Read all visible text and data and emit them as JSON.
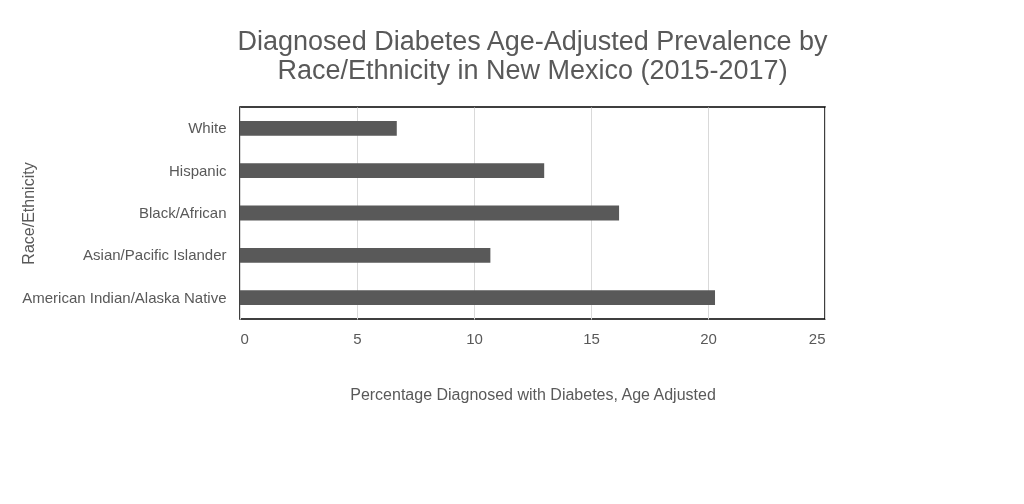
{
  "chart_data": {
    "type": "bar",
    "orientation": "horizontal",
    "title": [
      "Diagnosed Diabetes Age-Adjusted Prevalence by",
      "Race/Ethnicity in New Mexico (2015-2017)"
    ],
    "xlabel": "Percentage Diagnosed with Diabetes, Age Adjusted",
    "ylabel": "Race/Ethnicity",
    "categories": [
      "White",
      "Hispanic",
      "Black/African",
      "Asian/Pacific Islander",
      "American Indian/Alaska Native"
    ],
    "values": [
      6.7,
      13.0,
      16.2,
      10.7,
      20.3
    ],
    "color": "#595959",
    "xlim": [
      0,
      25
    ],
    "xticks": [
      0,
      5,
      10,
      15,
      20,
      25
    ],
    "grid": "x"
  }
}
